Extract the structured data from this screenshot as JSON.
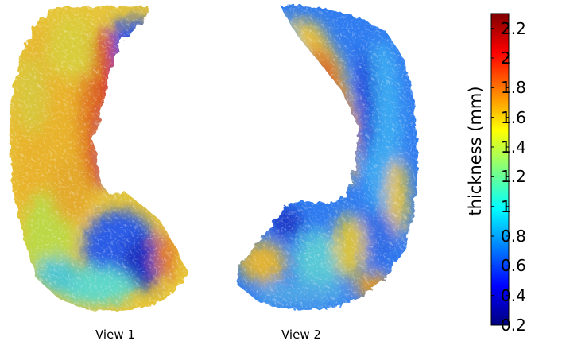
{
  "views": [
    {
      "label": "View 1"
    },
    {
      "label": "View 2"
    }
  ],
  "colorbar": {
    "label": "thickness (mm)",
    "min": 0.2,
    "max": 2.3,
    "ticks": [
      "2.2",
      "2",
      "1.8",
      "1.6",
      "1.4",
      "1.2",
      "1",
      "0.8",
      "0.6",
      "0.4",
      "0.2"
    ],
    "colormap": "jet",
    "colors": [
      "#00007f",
      "#0000ff",
      "#0080ff",
      "#00ffff",
      "#80ff80",
      "#ffff00",
      "#ff8000",
      "#ff0000",
      "#7f0000"
    ]
  }
}
